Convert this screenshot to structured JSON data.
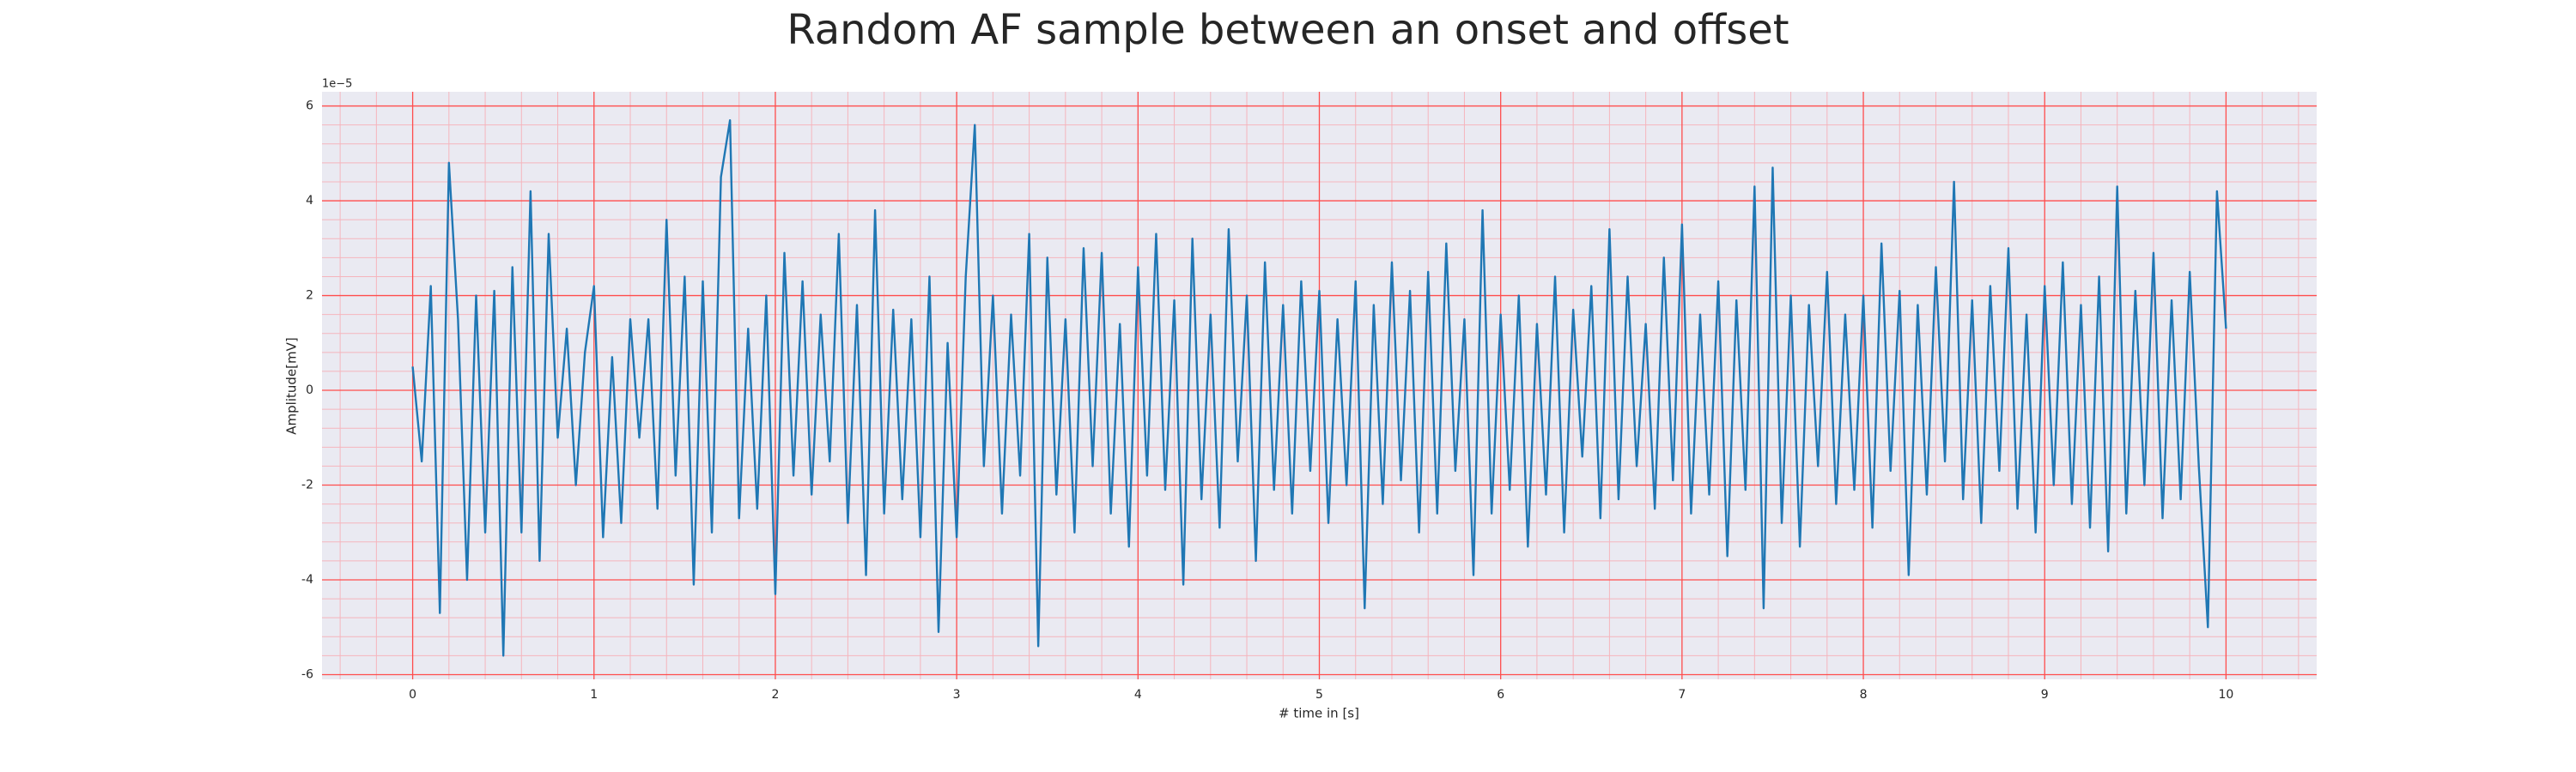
{
  "chart_data": {
    "type": "line",
    "title": "Random AF sample between an onset and offset",
    "x_label": "# time in [s]",
    "y_label": "Amplitude[mV]",
    "offset_label": "1e−5",
    "xlim": [
      -0.5,
      10.5
    ],
    "ylim": [
      -6.1,
      6.3
    ],
    "xticks": [
      0,
      1,
      2,
      3,
      4,
      5,
      6,
      7,
      8,
      9,
      10
    ],
    "yticks": [
      -6,
      -4,
      -2,
      0,
      2,
      4,
      6
    ],
    "grid": true,
    "minor_grid": true,
    "grid_color": "#ff4d4d",
    "minor_grid_color": "#f5b5bd",
    "background": "#eaeaf2",
    "x": [
      0,
      0.05,
      0.1,
      0.15,
      0.2,
      0.25,
      0.3,
      0.35,
      0.4,
      0.45,
      0.5,
      0.55,
      0.6,
      0.65,
      0.7,
      0.75,
      0.8,
      0.85,
      0.9,
      0.95,
      1,
      1.05,
      1.1,
      1.15,
      1.2,
      1.25,
      1.3,
      1.35,
      1.4,
      1.45,
      1.5,
      1.55,
      1.6,
      1.65,
      1.7,
      1.75,
      1.8,
      1.85,
      1.9,
      1.95,
      2,
      2.05,
      2.1,
      2.15,
      2.2,
      2.25,
      2.3,
      2.35,
      2.4,
      2.45,
      2.5,
      2.55,
      2.6,
      2.65,
      2.7,
      2.75,
      2.8,
      2.85,
      2.9,
      2.95,
      3,
      3.05,
      3.1,
      3.15,
      3.2,
      3.25,
      3.3,
      3.35,
      3.4,
      3.45,
      3.5,
      3.55,
      3.6,
      3.65,
      3.7,
      3.75,
      3.8,
      3.85,
      3.9,
      3.95,
      4,
      4.05,
      4.1,
      4.15,
      4.2,
      4.25,
      4.3,
      4.35,
      4.4,
      4.45,
      4.5,
      4.55,
      4.6,
      4.65,
      4.7,
      4.75,
      4.8,
      4.85,
      4.9,
      4.95,
      5,
      5.05,
      5.1,
      5.15,
      5.2,
      5.25,
      5.3,
      5.35,
      5.4,
      5.45,
      5.5,
      5.55,
      5.6,
      5.65,
      5.7,
      5.75,
      5.8,
      5.85,
      5.9,
      5.95,
      6,
      6.05,
      6.1,
      6.15,
      6.2,
      6.25,
      6.3,
      6.35,
      6.4,
      6.45,
      6.5,
      6.55,
      6.6,
      6.65,
      6.7,
      6.75,
      6.8,
      6.85,
      6.9,
      6.95,
      7,
      7.05,
      7.1,
      7.15,
      7.2,
      7.25,
      7.3,
      7.35,
      7.4,
      7.45,
      7.5,
      7.55,
      7.6,
      7.65,
      7.7,
      7.75,
      7.8,
      7.85,
      7.9,
      7.95,
      8,
      8.05,
      8.1,
      8.15,
      8.2,
      8.25,
      8.3,
      8.35,
      8.4,
      8.45,
      8.5,
      8.55,
      8.6,
      8.65,
      8.7,
      8.75,
      8.8,
      8.85,
      8.9,
      8.95,
      9,
      9.05,
      9.1,
      9.15,
      9.2,
      9.25,
      9.3,
      9.35,
      9.4,
      9.45,
      9.5,
      9.55,
      9.6,
      9.65,
      9.7,
      9.75,
      9.8,
      9.85,
      9.9,
      9.95,
      10
    ],
    "series": [
      {
        "name": "signal",
        "color": "#1f77b4",
        "values": [
          0.5,
          -1.5,
          2.2,
          -4.7,
          4.8,
          1.5,
          -4.0,
          2.0,
          -3.0,
          2.1,
          -5.6,
          2.6,
          -3.0,
          4.2,
          -3.6,
          3.3,
          -1.0,
          1.3,
          -2.0,
          0.8,
          2.2,
          -3.1,
          0.7,
          -2.8,
          1.5,
          -1.0,
          1.5,
          -2.5,
          3.6,
          -1.8,
          2.4,
          -4.1,
          2.3,
          -3.0,
          4.5,
          5.7,
          -2.7,
          1.3,
          -2.5,
          2.0,
          -4.3,
          2.9,
          -1.8,
          2.3,
          -2.2,
          1.6,
          -1.5,
          3.3,
          -2.8,
          1.8,
          -3.9,
          3.8,
          -2.6,
          1.7,
          -2.3,
          1.5,
          -3.1,
          2.4,
          -5.1,
          1.0,
          -3.1,
          2.4,
          5.6,
          -1.6,
          2.0,
          -2.6,
          1.6,
          -1.8,
          3.3,
          -5.4,
          2.8,
          -2.2,
          1.5,
          -3.0,
          3.0,
          -1.6,
          2.9,
          -2.6,
          1.4,
          -3.3,
          2.6,
          -1.8,
          3.3,
          -2.1,
          1.9,
          -4.1,
          3.2,
          -2.3,
          1.6,
          -2.9,
          3.4,
          -1.5,
          2.0,
          -3.6,
          2.7,
          -2.1,
          1.8,
          -2.6,
          2.3,
          -1.7,
          2.1,
          -2.8,
          1.5,
          -2.0,
          2.3,
          -4.6,
          1.8,
          -2.4,
          2.7,
          -1.9,
          2.1,
          -3.0,
          2.5,
          -2.6,
          3.1,
          -1.7,
          1.5,
          -3.9,
          3.8,
          -2.6,
          1.6,
          -2.1,
          2.0,
          -3.3,
          1.4,
          -2.2,
          2.4,
          -3.0,
          1.7,
          -1.4,
          2.2,
          -2.7,
          3.4,
          -2.3,
          2.4,
          -1.6,
          1.4,
          -2.5,
          2.8,
          -1.9,
          3.5,
          -2.6,
          1.6,
          -2.2,
          2.3,
          -3.5,
          1.9,
          -2.1,
          4.3,
          -4.6,
          4.7,
          -2.8,
          2.0,
          -3.3,
          1.8,
          -1.6,
          2.5,
          -2.4,
          1.6,
          -2.1,
          2.0,
          -2.9,
          3.1,
          -1.7,
          2.1,
          -3.9,
          1.8,
          -2.2,
          2.6,
          -1.5,
          4.4,
          -2.3,
          1.9,
          -2.8,
          2.2,
          -1.7,
          3.0,
          -2.5,
          1.6,
          -3.0,
          2.2,
          -2.0,
          2.7,
          -2.4,
          1.8,
          -2.9,
          2.4,
          -3.4,
          4.3,
          -2.6,
          2.1,
          -2.0,
          2.9,
          -2.7,
          1.9,
          -2.3,
          2.5,
          -1.6,
          -5.0,
          4.2,
          1.3
        ]
      }
    ]
  }
}
